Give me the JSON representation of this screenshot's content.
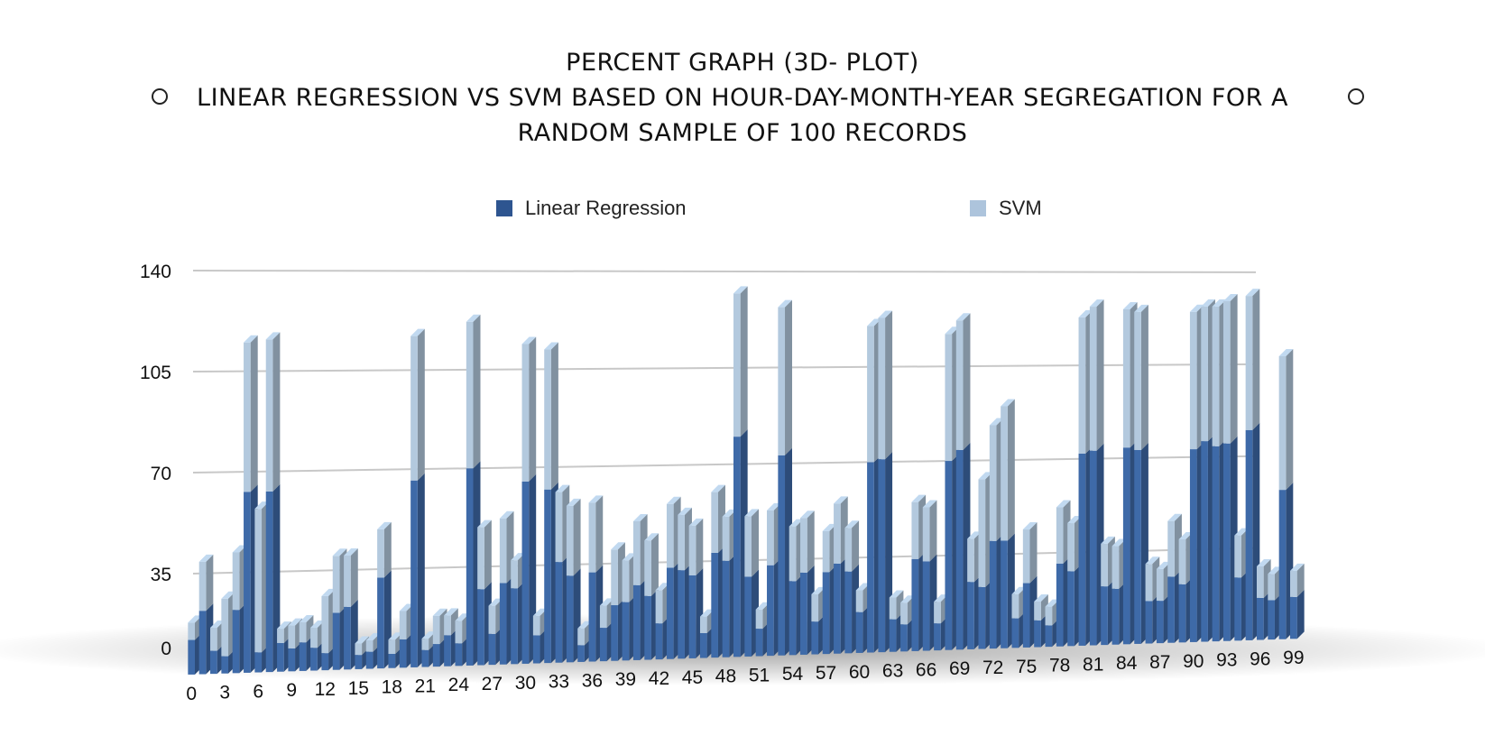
{
  "title_lines": [
    "PERCENT GRAPH (3D- PLOT)",
    "LINEAR REGRESSION VS SVM BASED ON HOUR-DAY-MONTH-YEAR SEGREGATION FOR A",
    "RANDOM SAMPLE OF 100 RECORDS"
  ],
  "colors": {
    "linear_regression": "#3e6aa8",
    "svm": "#b3c9de",
    "grid": "#c8c8c8"
  },
  "chart_data": {
    "type": "bar",
    "stacked": true,
    "view": "3d",
    "title": "PERCENT GRAPH (3D- PLOT) LINEAR REGRESSION VS SVM BASED ON HOUR-DAY-MONTH-YEAR SEGREGATION FOR A RANDOM SAMPLE OF 100 RECORDS",
    "legend": [
      "Linear Regression",
      "SVM"
    ],
    "legend_position": "top",
    "grid": true,
    "ylim": [
      0,
      140
    ],
    "yticks": [
      0,
      35,
      70,
      105,
      140
    ],
    "xtick_labels": [
      "0",
      "3",
      "6",
      "9",
      "12",
      "15",
      "18",
      "21",
      "24",
      "27",
      "30",
      "33",
      "36",
      "39",
      "42",
      "45",
      "48",
      "51",
      "54",
      "57",
      "60",
      "63",
      "66",
      "69",
      "72",
      "75",
      "78",
      "81",
      "84",
      "87",
      "90",
      "93",
      "96",
      "99"
    ],
    "categories": [
      "0",
      "1",
      "2",
      "3",
      "4",
      "5",
      "6",
      "7",
      "8",
      "9",
      "10",
      "11",
      "12",
      "13",
      "14",
      "15",
      "16",
      "17",
      "18",
      "19",
      "20",
      "21",
      "22",
      "23",
      "24",
      "25",
      "26",
      "27",
      "28",
      "29",
      "30",
      "31",
      "32",
      "33",
      "34",
      "35",
      "36",
      "37",
      "38",
      "39",
      "40",
      "41",
      "42",
      "43",
      "44",
      "45",
      "46",
      "47",
      "48",
      "49",
      "50",
      "51",
      "52",
      "53",
      "54",
      "55",
      "56",
      "57",
      "58",
      "59",
      "60",
      "61",
      "62",
      "63",
      "64",
      "65",
      "66",
      "67",
      "68",
      "69",
      "70",
      "71",
      "72",
      "73",
      "74",
      "75",
      "76",
      "77",
      "78",
      "79",
      "80",
      "81",
      "82",
      "83",
      "84",
      "85",
      "86",
      "87",
      "88",
      "89",
      "90",
      "91",
      "92",
      "93",
      "94",
      "95",
      "96",
      "97",
      "98",
      "99"
    ],
    "series": [
      {
        "name": "Linear Regression",
        "values": [
          12,
          22,
          8,
          6,
          22,
          63,
          7,
          63,
          10,
          8,
          10,
          8,
          6,
          20,
          22,
          5,
          6,
          32,
          5,
          10,
          66,
          6,
          8,
          11,
          8,
          70,
          27,
          11,
          29,
          27,
          65,
          10,
          62,
          36,
          31,
          6,
          32,
          12,
          20,
          21,
          27,
          23,
          13,
          33,
          32,
          30,
          9,
          38,
          35,
          80,
          29,
          10,
          33,
          73,
          27,
          30,
          12,
          30,
          33,
          30,
          15,
          70,
          71,
          12,
          10,
          34,
          33,
          10,
          70,
          74,
          25,
          23,
          40,
          40,
          11,
          24,
          10,
          8,
          31,
          28,
          72,
          73,
          22,
          21,
          74,
          73,
          16,
          16,
          25,
          22,
          73,
          76,
          74,
          75,
          24,
          80,
          16,
          15,
          57,
          16
        ]
      },
      {
        "name": "SVM",
        "values": [
          6,
          17,
          8,
          20,
          20,
          52,
          50,
          53,
          5,
          8,
          7,
          7,
          20,
          20,
          18,
          4,
          4,
          17,
          5,
          10,
          51,
          4,
          10,
          7,
          8,
          52,
          22,
          10,
          23,
          10,
          49,
          7,
          50,
          25,
          25,
          6,
          25,
          8,
          20,
          15,
          23,
          20,
          12,
          23,
          20,
          18,
          6,
          22,
          16,
          52,
          22,
          7,
          20,
          54,
          20,
          20,
          10,
          15,
          22,
          16,
          8,
          50,
          52,
          8,
          8,
          21,
          20,
          8,
          47,
          48,
          16,
          40,
          43,
          50,
          9,
          20,
          7,
          7,
          21,
          18,
          51,
          54,
          16,
          16,
          52,
          52,
          14,
          12,
          21,
          17,
          52,
          51,
          53,
          54,
          16,
          51,
          12,
          10,
          51,
          10
        ]
      }
    ]
  }
}
